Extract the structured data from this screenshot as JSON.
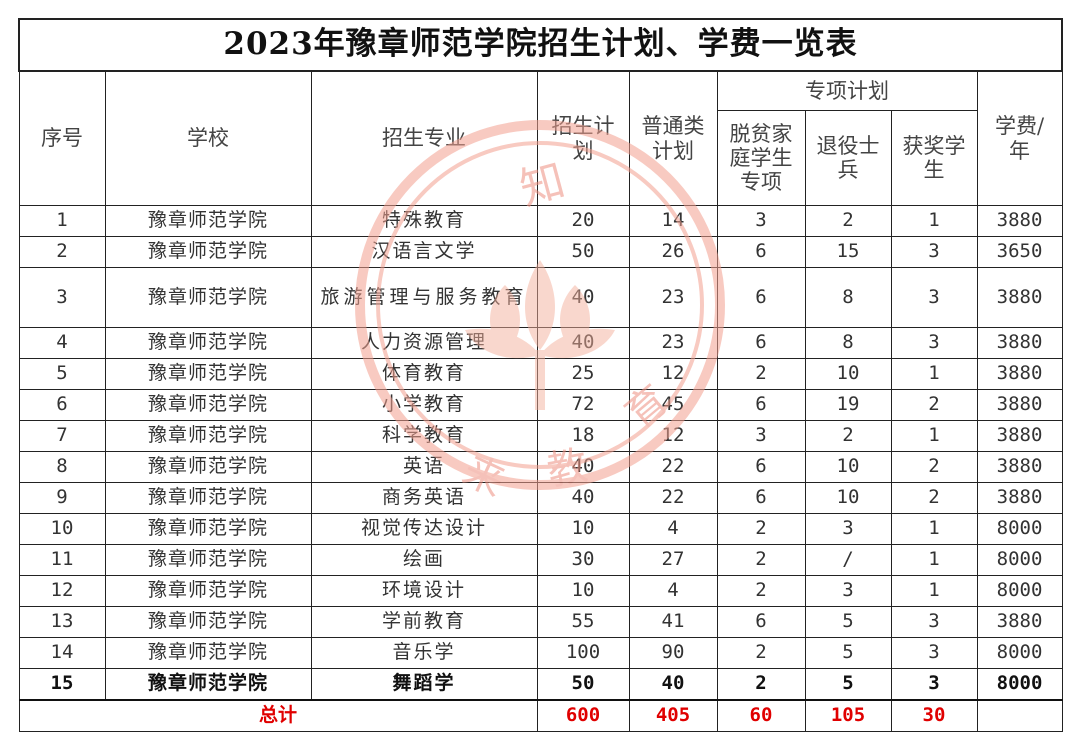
{
  "title": "2023年豫章师范学院招生计划、学费一览表",
  "headers": {
    "seq": "序号",
    "school": "学校",
    "major": "招生专业",
    "plan": "招生计划",
    "general": "普通类计划",
    "special": "专项计划",
    "poverty": "脱贫家庭学生专项",
    "veteran": "退役士兵",
    "award": "获奖学生",
    "fee": "学费/年"
  },
  "rows": [
    {
      "seq": "1",
      "school": "豫章师范学院",
      "major": "特殊教育",
      "plan": "20",
      "general": "14",
      "poverty": "3",
      "veteran": "2",
      "award": "1",
      "fee": "3880"
    },
    {
      "seq": "2",
      "school": "豫章师范学院",
      "major": "汉语言文学",
      "plan": "50",
      "general": "26",
      "poverty": "6",
      "veteran": "15",
      "award": "3",
      "fee": "3650"
    },
    {
      "seq": "3",
      "school": "豫章师范学院",
      "major": "旅游管理与服务教育",
      "plan": "40",
      "general": "23",
      "poverty": "6",
      "veteran": "8",
      "award": "3",
      "fee": "3880"
    },
    {
      "seq": "4",
      "school": "豫章师范学院",
      "major": "人力资源管理",
      "plan": "40",
      "general": "23",
      "poverty": "6",
      "veteran": "8",
      "award": "3",
      "fee": "3880"
    },
    {
      "seq": "5",
      "school": "豫章师范学院",
      "major": "体育教育",
      "plan": "25",
      "general": "12",
      "poverty": "2",
      "veteran": "10",
      "award": "1",
      "fee": "3880"
    },
    {
      "seq": "6",
      "school": "豫章师范学院",
      "major": "小学教育",
      "plan": "72",
      "general": "45",
      "poverty": "6",
      "veteran": "19",
      "award": "2",
      "fee": "3880"
    },
    {
      "seq": "7",
      "school": "豫章师范学院",
      "major": "科学教育",
      "plan": "18",
      "general": "12",
      "poverty": "3",
      "veteran": "2",
      "award": "1",
      "fee": "3880"
    },
    {
      "seq": "8",
      "school": "豫章师范学院",
      "major": "英语",
      "plan": "40",
      "general": "22",
      "poverty": "6",
      "veteran": "10",
      "award": "2",
      "fee": "3880"
    },
    {
      "seq": "9",
      "school": "豫章师范学院",
      "major": "商务英语",
      "plan": "40",
      "general": "22",
      "poverty": "6",
      "veteran": "10",
      "award": "2",
      "fee": "3880"
    },
    {
      "seq": "10",
      "school": "豫章师范学院",
      "major": "视觉传达设计",
      "plan": "10",
      "general": "4",
      "poverty": "2",
      "veteran": "3",
      "award": "1",
      "fee": "8000"
    },
    {
      "seq": "11",
      "school": "豫章师范学院",
      "major": "绘画",
      "plan": "30",
      "general": "27",
      "poverty": "2",
      "veteran": "/",
      "award": "1",
      "fee": "8000"
    },
    {
      "seq": "12",
      "school": "豫章师范学院",
      "major": "环境设计",
      "plan": "10",
      "general": "4",
      "poverty": "2",
      "veteran": "3",
      "award": "1",
      "fee": "8000"
    },
    {
      "seq": "13",
      "school": "豫章师范学院",
      "major": "学前教育",
      "plan": "55",
      "general": "41",
      "poverty": "6",
      "veteran": "5",
      "award": "3",
      "fee": "3880"
    },
    {
      "seq": "14",
      "school": "豫章师范学院",
      "major": "音乐学",
      "plan": "100",
      "general": "90",
      "poverty": "2",
      "veteran": "5",
      "award": "3",
      "fee": "8000"
    },
    {
      "seq": "15",
      "school": "豫章师范学院",
      "major": "舞蹈学",
      "plan": "50",
      "general": "40",
      "poverty": "2",
      "veteran": "5",
      "award": "3",
      "fee": "8000"
    }
  ],
  "total": {
    "label": "总计",
    "plan": "600",
    "general": "405",
    "poverty": "60",
    "veteran": "105",
    "award": "30",
    "fee": ""
  },
  "watermark": {
    "text": [
      "知",
      "来",
      "教",
      "育"
    ],
    "color": "#f08a7a"
  }
}
